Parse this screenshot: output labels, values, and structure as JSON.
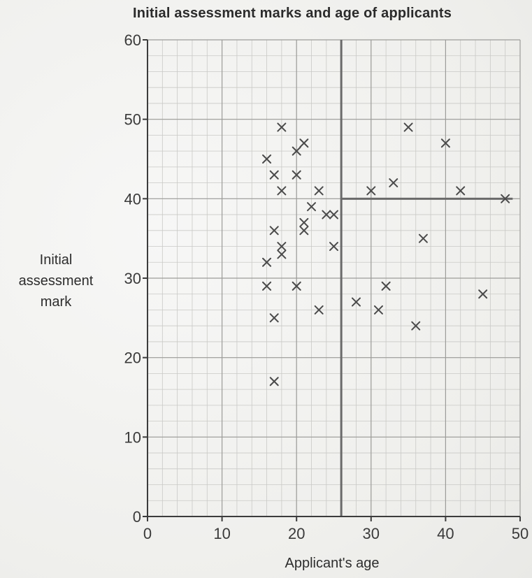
{
  "chart_data": {
    "type": "scatter",
    "title": "Initial assessment marks and age of applicants",
    "xlabel": "Applicant's age",
    "ylabel": [
      "Initial",
      "assessment",
      "mark"
    ],
    "xlim": [
      0,
      50
    ],
    "ylim": [
      0,
      60
    ],
    "xticks": [
      "0",
      "10",
      "20",
      "30",
      "40",
      "50"
    ],
    "yticks": [
      "0",
      "10",
      "20",
      "30",
      "40",
      "50",
      "60"
    ],
    "grid": true,
    "marker": "x",
    "points": [
      {
        "x": 16,
        "y": 45
      },
      {
        "x": 16,
        "y": 32
      },
      {
        "x": 16,
        "y": 29
      },
      {
        "x": 17,
        "y": 43
      },
      {
        "x": 17,
        "y": 36
      },
      {
        "x": 17,
        "y": 25
      },
      {
        "x": 17,
        "y": 17
      },
      {
        "x": 18,
        "y": 49
      },
      {
        "x": 18,
        "y": 41
      },
      {
        "x": 18,
        "y": 34
      },
      {
        "x": 18,
        "y": 33
      },
      {
        "x": 20,
        "y": 46
      },
      {
        "x": 20,
        "y": 43
      },
      {
        "x": 20,
        "y": 29
      },
      {
        "x": 21,
        "y": 47
      },
      {
        "x": 21,
        "y": 37
      },
      {
        "x": 21,
        "y": 36
      },
      {
        "x": 22,
        "y": 39
      },
      {
        "x": 23,
        "y": 41
      },
      {
        "x": 23,
        "y": 26
      },
      {
        "x": 24,
        "y": 38
      },
      {
        "x": 25,
        "y": 38
      },
      {
        "x": 25,
        "y": 34
      },
      {
        "x": 28,
        "y": 27
      },
      {
        "x": 30,
        "y": 41
      },
      {
        "x": 31,
        "y": 26
      },
      {
        "x": 32,
        "y": 29
      },
      {
        "x": 33,
        "y": 42
      },
      {
        "x": 35,
        "y": 49
      },
      {
        "x": 36,
        "y": 24
      },
      {
        "x": 37,
        "y": 35
      },
      {
        "x": 40,
        "y": 47
      },
      {
        "x": 42,
        "y": 41
      },
      {
        "x": 45,
        "y": 28
      },
      {
        "x": 48,
        "y": 40
      }
    ],
    "reference_lines": [
      {
        "orientation": "vertical",
        "x": 26,
        "y_from": 0,
        "y_to": 60
      },
      {
        "orientation": "horizontal",
        "y": 40,
        "x_from": 26,
        "x_to": 49
      }
    ]
  }
}
